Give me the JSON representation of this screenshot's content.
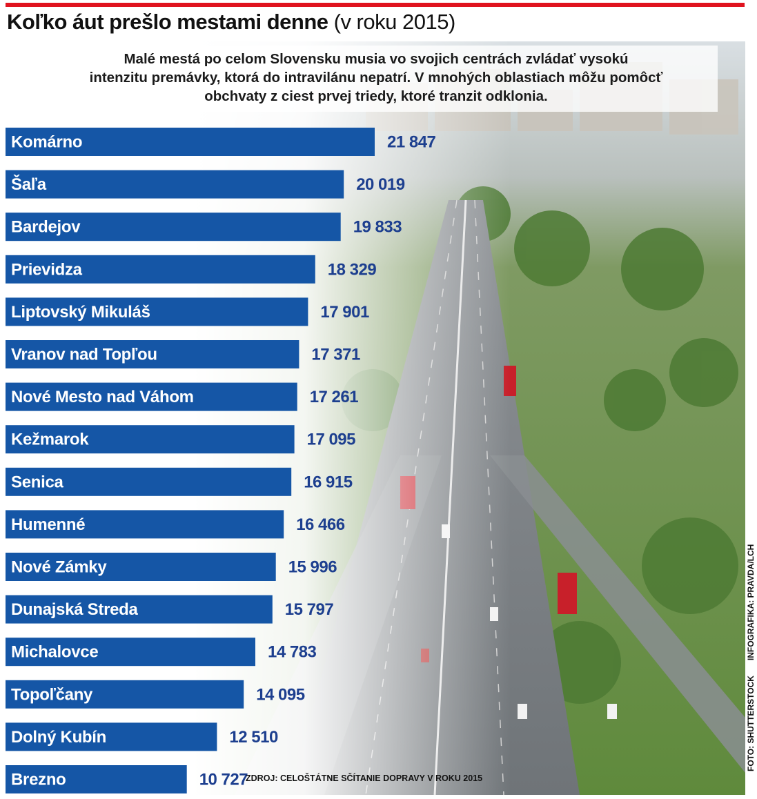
{
  "header": {
    "title_main": "Koľko áut prešlo mestami denne",
    "title_sub": "(v roku 2015)"
  },
  "intro_lines": [
    "Malé mestá po celom Slovensku musia vo svojich centrách zvládať vysokú",
    "intenzitu premávky, ktorá do intravilánu nepatrí. V mnohých oblastiach môžu pomôcť",
    "obchvaty z ciest prvej triedy, ktoré tranzit odklonia."
  ],
  "colors": {
    "accent_red": "#e0131f",
    "bar_blue": "#1556a6",
    "value_blue": "#1d3f8f"
  },
  "chart_data": {
    "type": "bar",
    "orientation": "horizontal",
    "title": "Koľko áut prešlo mestami denne (v roku 2015)",
    "categories": [
      "Komárno",
      "Šaľa",
      "Bardejov",
      "Prievidza",
      "Liptovský Mikuláš",
      "Vranov nad Topľou",
      "Nové Mesto nad Váhom",
      "Kežmarok",
      "Senica",
      "Humenné",
      "Nové Zámky",
      "Dunajská Streda",
      "Michalovce",
      "Topoľčany",
      "Dolný Kubín",
      "Brezno"
    ],
    "values": [
      21847,
      20019,
      19833,
      18329,
      17901,
      17371,
      17261,
      17095,
      16915,
      16466,
      15996,
      15797,
      14783,
      14095,
      12510,
      10727
    ],
    "value_labels": [
      "21 847",
      "20 019",
      "19 833",
      "18 329",
      "17 901",
      "17 371",
      "17 261",
      "17 095",
      "16 915",
      "16 466",
      "15 996",
      "15 797",
      "14 783",
      "14 095",
      "12 510",
      "10 727"
    ],
    "xlim": [
      0,
      21847
    ],
    "xlabel": "",
    "ylabel": "",
    "legend": "none",
    "grid": false
  },
  "footer": {
    "source": "ZDROJ: CELOŠTÁTNE SČÍTANIE DOPRAVY V ROKU 2015",
    "photo_credit": "FOTO: SHUTTERSTOCK",
    "infographic_credit": "INFOGRAFIKA: PRAVDA/LCH"
  }
}
